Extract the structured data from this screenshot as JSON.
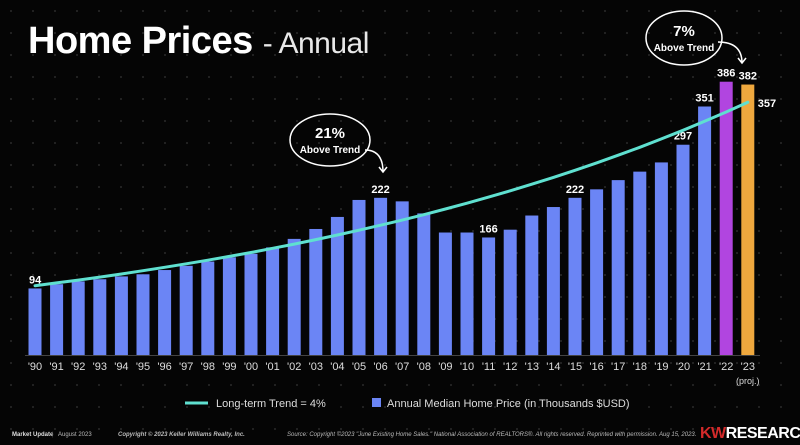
{
  "title": {
    "main": "Home Prices",
    "sub": "- Annual"
  },
  "chart_data": {
    "type": "bar",
    "categories": [
      "'90",
      "'91",
      "'92",
      "'93",
      "'94",
      "'95",
      "'96",
      "'97",
      "'98",
      "'99",
      "'00",
      "'01",
      "'02",
      "'03",
      "'04",
      "'05",
      "'06",
      "'07",
      "'08",
      "'09",
      "'10",
      "'11",
      "'12",
      "'13",
      "'14",
      "'15",
      "'16",
      "'17",
      "'18",
      "'19",
      "'20",
      "'21",
      "'22",
      "'23"
    ],
    "category_note": {
      "'23": "(proj.)"
    },
    "series": [
      {
        "name": "Annual Median Home Price (in Thousands $USD)",
        "type": "bar",
        "values": [
          94,
          100,
          104,
          107,
          111,
          114,
          120,
          126,
          132,
          138,
          143,
          152,
          164,
          178,
          195,
          219,
          222,
          217,
          200,
          173,
          173,
          166,
          177,
          197,
          209,
          222,
          234,
          247,
          259,
          272,
          297,
          351,
          386,
          382
        ]
      },
      {
        "name": "Long-term Trend = 4%",
        "type": "line",
        "growth_rate": 0.04,
        "end_value": 357
      }
    ],
    "data_labels": {
      "'90": "94",
      "'06": "222",
      "'11": "166",
      "'15": "222",
      "'20": "297",
      "'21": "351",
      "'22": "386",
      "'23": "382"
    },
    "trend_end_label": "357",
    "ylim": [
      0,
      400
    ],
    "grid": false,
    "legend": "bottom",
    "colors": {
      "bar": "#6b85f5",
      "bar_2022": "#b145e0",
      "bar_2023": "#efa83e",
      "trend": "#5fe0d0"
    },
    "annotations": [
      {
        "pct": "21%",
        "text": "Above Trend",
        "target": "'06"
      },
      {
        "pct": "7%",
        "text": "Above Trend",
        "target": "'23"
      }
    ]
  },
  "footer": {
    "market_update": "Market Update",
    "date": "August 2023",
    "copyright": "Copyright © 2023 Keller Williams Realty, Inc.",
    "source": "Source: Copyright ©2023 \"June Existing Home Sales.\" National Association of REALTORS®. All rights reserved. Reprinted with permission. Aug 15, 2023.",
    "brand_kw": "KW",
    "brand_research": "RESEARCH"
  }
}
